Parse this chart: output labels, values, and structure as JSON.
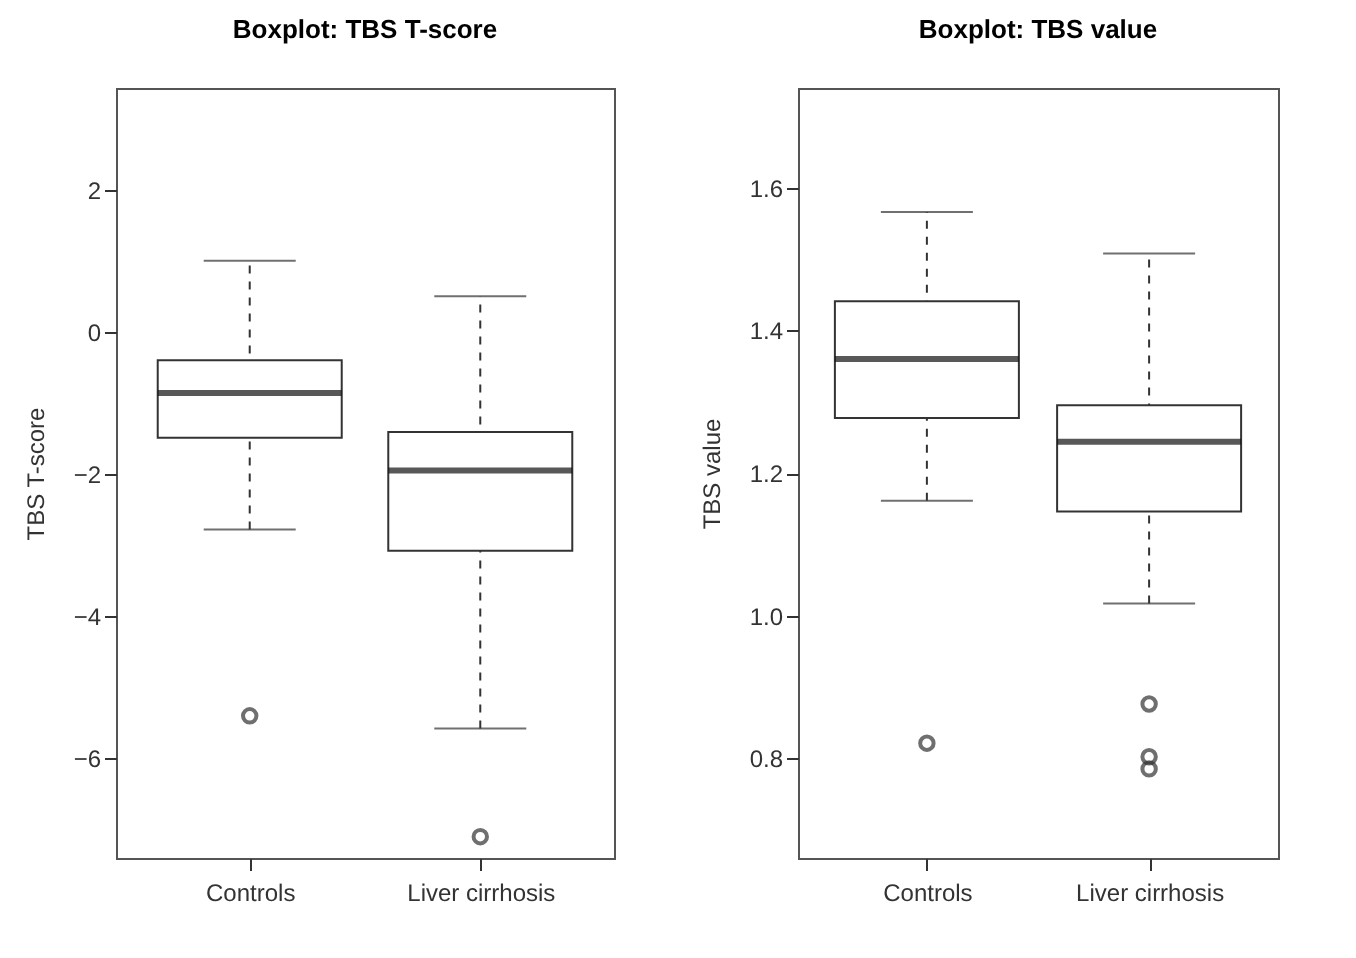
{
  "chart_data": [
    {
      "type": "box",
      "title": "Boxplot: TBS T-score",
      "ylabel": "TBS T-score",
      "categories": [
        "Controls",
        "Liver cirrhosis"
      ],
      "ylim": [
        -7.4,
        3.43
      ],
      "yticks": [
        -6,
        -4,
        -2,
        0,
        2
      ],
      "grid": false,
      "boxes": [
        {
          "low": -2.78,
          "q1": -1.49,
          "median": -0.86,
          "q3": -0.4,
          "high": 1.0,
          "outliers": [
            -5.4
          ]
        },
        {
          "low": -5.58,
          "q1": -3.08,
          "median": -1.95,
          "q3": -1.41,
          "high": 0.5,
          "outliers": [
            -7.1
          ]
        }
      ]
    },
    {
      "type": "box",
      "title": "Boxplot: TBS value",
      "ylabel": "TBS value",
      "categories": [
        "Controls",
        "Liver cirrhosis"
      ],
      "ylim": [
        0.66,
        1.74
      ],
      "yticks": [
        0.8,
        {
          "value": 1.0,
          "label": "1.0"
        },
        1.2,
        1.4,
        1.6
      ],
      "grid": false,
      "boxes": [
        {
          "low": 1.161,
          "q1": 1.277,
          "median": 1.36,
          "q3": 1.441,
          "high": 1.566,
          "outliers": [
            0.821
          ]
        },
        {
          "low": 1.017,
          "q1": 1.146,
          "median": 1.244,
          "q3": 1.295,
          "high": 1.508,
          "outliers": [
            0.876,
            0.802,
            0.785
          ]
        }
      ]
    }
  ]
}
